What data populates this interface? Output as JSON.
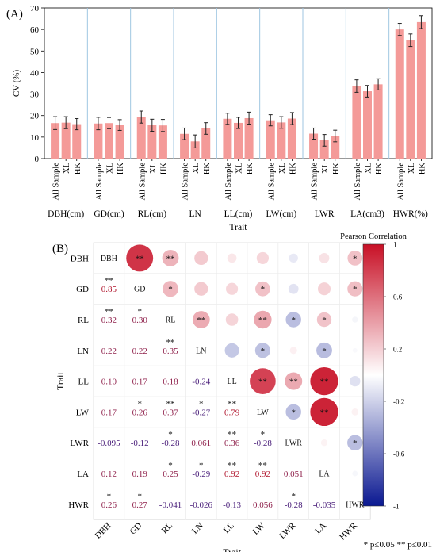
{
  "panel_a_label": "(A)",
  "panel_b_label": "(B)",
  "footnote": "* p≤0.05  ** p≤0.01",
  "chart_data": [
    {
      "type": "bar",
      "ylabel": "CV (%)",
      "xlabel": "Trait",
      "ylim": [
        0,
        70
      ],
      "yticks": [
        0,
        10,
        20,
        30,
        40,
        50,
        60,
        70
      ],
      "bar_color": "#f49a98",
      "separator_color": "#9fc6e2",
      "sample_labels": [
        "All Sample",
        "XL",
        "HK"
      ],
      "groups": [
        {
          "trait": "DBH(cm)",
          "values": [
            16.5,
            16.7,
            16.0
          ],
          "errors": [
            3.0,
            2.8,
            2.6
          ]
        },
        {
          "trait": "GD(cm)",
          "values": [
            16.3,
            16.5,
            15.6
          ],
          "errors": [
            2.9,
            2.6,
            2.5
          ]
        },
        {
          "trait": "RL(cm)",
          "values": [
            19.3,
            15.5,
            15.4
          ],
          "errors": [
            2.8,
            2.8,
            2.8
          ]
        },
        {
          "trait": "LN",
          "values": [
            11.5,
            8.0,
            14.0
          ],
          "errors": [
            2.7,
            3.0,
            2.7
          ]
        },
        {
          "trait": "LL(cm)",
          "values": [
            18.5,
            16.6,
            18.8
          ],
          "errors": [
            2.6,
            2.6,
            2.8
          ]
        },
        {
          "trait": "LW(cm)",
          "values": [
            17.8,
            16.8,
            18.6
          ],
          "errors": [
            2.6,
            2.7,
            2.8
          ]
        },
        {
          "trait": "LWR",
          "values": [
            11.6,
            8.5,
            10.5
          ],
          "errors": [
            2.6,
            2.7,
            2.7
          ]
        },
        {
          "trait": "LA(cm3)",
          "values": [
            33.7,
            31.3,
            34.5
          ],
          "errors": [
            2.9,
            2.7,
            2.6
          ]
        },
        {
          "trait": "HWR(%)",
          "values": [
            60.0,
            55.0,
            63.4
          ],
          "errors": [
            2.8,
            2.9,
            3.0
          ]
        }
      ]
    },
    {
      "type": "heatmap",
      "xlabel": "Trait",
      "ylabel": "Trait",
      "legend_title": "Pearson Correlation",
      "colorbar_ticks": [
        "1",
        "0.6",
        "0.2",
        "-0.2",
        "-0.6",
        "-1"
      ],
      "colorbar_values": [
        1,
        0.6,
        0.2,
        -0.2,
        -0.6,
        -1
      ],
      "traits": [
        "DBH",
        "GD",
        "RL",
        "LN",
        "LL",
        "LW",
        "LWR",
        "LA",
        "HWR"
      ],
      "lower_labels": [
        [
          null
        ],
        [
          "0.85"
        ],
        [
          "0.32",
          "0.30"
        ],
        [
          "0.22",
          "0.22",
          "0.35"
        ],
        [
          "0.10",
          "0.17",
          "0.18",
          "-0.24"
        ],
        [
          "0.17",
          "0.26",
          "0.37",
          "-0.27",
          "0.79"
        ],
        [
          "-0.095",
          "-0.12",
          "-0.28",
          "0.061",
          "0.36",
          "-0.28"
        ],
        [
          "0.12",
          "0.19",
          "0.25",
          "-0.29",
          "0.92",
          "0.92",
          "0.051"
        ],
        [
          "0.26",
          "0.27",
          "-0.041",
          "-0.026",
          "-0.13",
          "0.056",
          "-0.28",
          "-0.035"
        ]
      ],
      "matrix": [
        [
          1,
          0.85,
          0.32,
          0.22,
          0.1,
          0.17,
          -0.095,
          0.12,
          0.26
        ],
        [
          0.85,
          1,
          0.3,
          0.22,
          0.17,
          0.26,
          -0.12,
          0.19,
          0.27
        ],
        [
          0.32,
          0.3,
          1,
          0.35,
          0.18,
          0.37,
          -0.28,
          0.25,
          -0.041
        ],
        [
          0.22,
          0.22,
          0.35,
          1,
          -0.24,
          -0.27,
          0.061,
          -0.29,
          -0.026
        ],
        [
          0.1,
          0.17,
          0.18,
          -0.24,
          1,
          0.79,
          0.36,
          0.92,
          -0.13
        ],
        [
          0.17,
          0.26,
          0.37,
          -0.27,
          0.79,
          1,
          -0.28,
          0.92,
          0.056
        ],
        [
          -0.095,
          -0.12,
          -0.28,
          0.061,
          0.36,
          -0.28,
          1,
          0.051,
          -0.28
        ],
        [
          0.12,
          0.19,
          0.25,
          -0.29,
          0.92,
          0.92,
          0.051,
          1,
          -0.035
        ],
        [
          0.26,
          0.27,
          -0.041,
          -0.026,
          -0.13,
          0.056,
          -0.28,
          -0.035,
          1
        ]
      ],
      "significance": [
        [
          "",
          "**",
          "**",
          "",
          "",
          "",
          "",
          "",
          "*"
        ],
        [
          "**",
          "",
          "*",
          "",
          "",
          "*",
          "",
          "",
          "*"
        ],
        [
          "**",
          "*",
          "",
          "**",
          "",
          "**",
          "*",
          "*",
          ""
        ],
        [
          "",
          "",
          "**",
          "",
          "",
          "*",
          "",
          "*",
          ""
        ],
        [
          "",
          "",
          "",
          "",
          "",
          "**",
          "**",
          "**",
          ""
        ],
        [
          "",
          "*",
          "**",
          "*",
          "**",
          "",
          "*",
          "**",
          ""
        ],
        [
          "",
          "",
          "*",
          "",
          "**",
          "*",
          "",
          "",
          "*"
        ],
        [
          "",
          "",
          "*",
          "*",
          "**",
          "**",
          "",
          "",
          ""
        ],
        [
          "*",
          "*",
          "",
          "",
          "",
          "",
          "*",
          "",
          ""
        ]
      ]
    }
  ]
}
